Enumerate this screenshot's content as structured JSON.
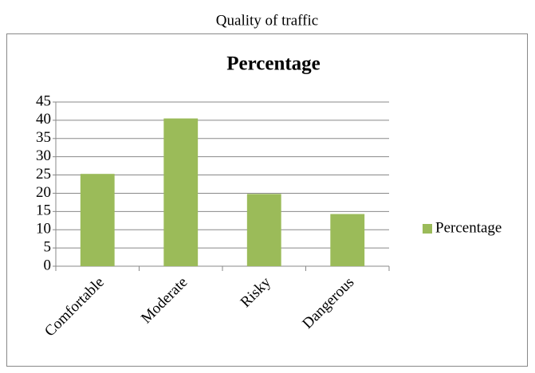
{
  "caption": "Quality of traffic",
  "chart_data": {
    "type": "bar",
    "title": "Percentage",
    "categories": [
      "Comfortable",
      "Moderate",
      "Risky",
      "Dangerous"
    ],
    "series": [
      {
        "name": "Percentage",
        "color": "#9bbb59",
        "values": [
          25.3,
          40.5,
          19.8,
          14.3
        ]
      }
    ],
    "ylim": [
      0,
      45
    ],
    "yticks": [
      0,
      5,
      10,
      15,
      20,
      25,
      30,
      35,
      40,
      45
    ],
    "grid": true,
    "legend": "right"
  }
}
